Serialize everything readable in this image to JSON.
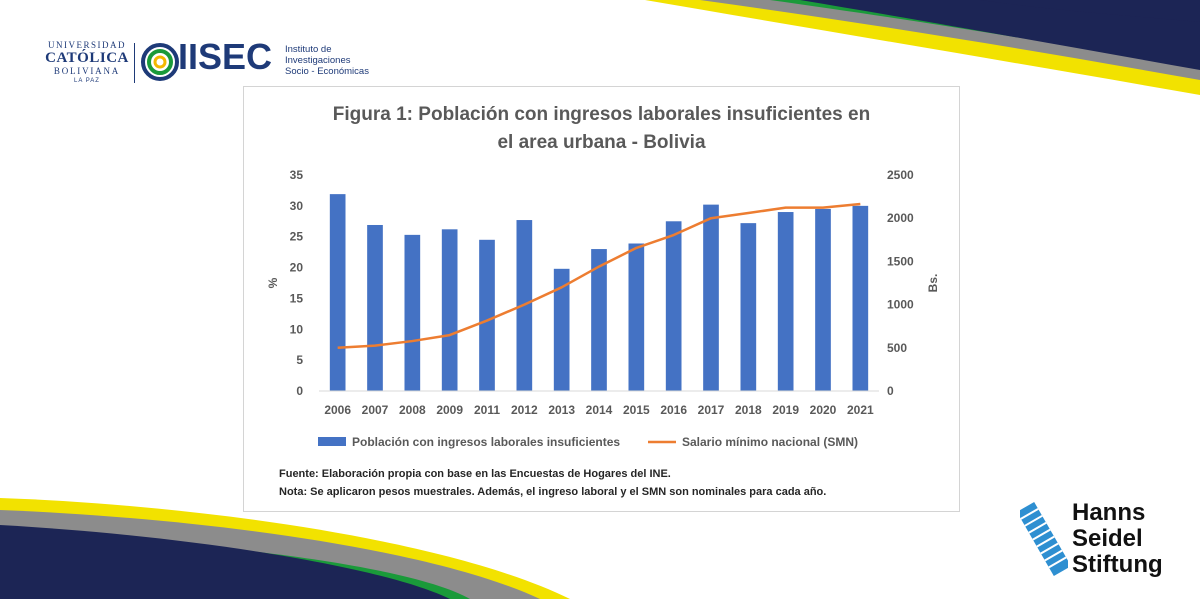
{
  "header": {
    "ucb_line1": "UNIVERSIDAD",
    "ucb_line2": "CATÓLICA",
    "ucb_line3": "BOLIVIANA",
    "ucb_line4": "LA PAZ",
    "iisec_name": "IISEC",
    "iisec_sub1": "Instituto de",
    "iisec_sub2": "Investigaciones",
    "iisec_sub3": "Socio - Económicas"
  },
  "footer_logo": {
    "line1": "Hanns",
    "line2": "Seidel",
    "line3": "Stiftung"
  },
  "colors": {
    "bar": "#4472c4",
    "line": "#ed7d31",
    "navy": "#1c2555",
    "yellow": "#f2e200",
    "green": "#1a9a3a",
    "gray": "#8c8c8c"
  },
  "chart_data": {
    "type": "bar",
    "title_line1": "Figura 1: Población con ingresos laborales insuficientes en",
    "title_line2": "el area urbana - Bolivia",
    "categories": [
      "2006",
      "2007",
      "2008",
      "2009",
      "2011",
      "2012",
      "2013",
      "2014",
      "2015",
      "2016",
      "2017",
      "2018",
      "2019",
      "2020",
      "2021"
    ],
    "series": [
      {
        "name": "Población con ingresos laborales insuficientes",
        "type": "bar",
        "axis": "left",
        "values": [
          31.9,
          26.9,
          25.3,
          26.2,
          24.5,
          27.7,
          19.8,
          23.0,
          23.9,
          27.5,
          30.2,
          27.2,
          29.0,
          29.5,
          30.0
        ]
      },
      {
        "name": "Salario mínimo nacional (SMN)",
        "type": "line",
        "axis": "right",
        "values": [
          500,
          525,
          578,
          647,
          815,
          1000,
          1200,
          1440,
          1656,
          1805,
          2000,
          2060,
          2122,
          2122,
          2164
        ]
      }
    ],
    "ylabel_left": "%",
    "ylabel_right": "Bs.",
    "ylim_left": [
      0,
      35
    ],
    "yticks_left": [
      0,
      5,
      10,
      15,
      20,
      25,
      30,
      35
    ],
    "ylim_right": [
      0,
      2500
    ],
    "yticks_right": [
      0,
      500,
      1000,
      1500,
      2000,
      2500
    ],
    "grid": false,
    "legend_position": "bottom",
    "note_source": "Fuente: Elaboración propia con base en las Encuestas de Hogares del INE.",
    "note_extra": "Nota: Se aplicaron pesos muestrales. Además, el ingreso laboral y el SMN son nominales para cada año."
  }
}
